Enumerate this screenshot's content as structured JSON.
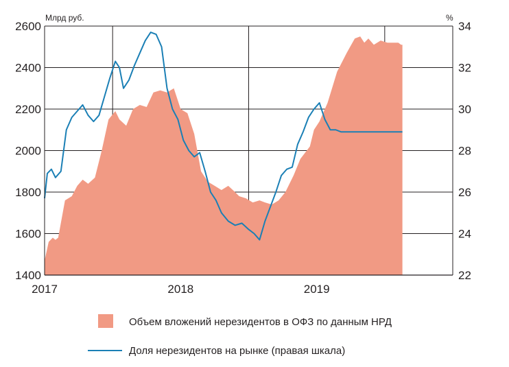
{
  "chart_data": {
    "type": "area",
    "left_axis": {
      "label": "Млрд руб.",
      "ticks": [
        1400,
        1600,
        1800,
        2000,
        2200,
        2400,
        2600
      ],
      "tick_labels": [
        "1400",
        "1600",
        "1800",
        "2000",
        "2200",
        "2400",
        "2600"
      ],
      "ylim": [
        1400,
        2600
      ]
    },
    "right_axis": {
      "label": "%",
      "ticks": [
        22,
        24,
        26,
        28,
        30,
        32,
        34
      ],
      "tick_labels": [
        "22",
        "24",
        "26",
        "28",
        "30",
        "32",
        "34"
      ],
      "ylim": [
        22,
        34
      ]
    },
    "x_axis": {
      "tick_labels": [
        "2017",
        "2018",
        "2019"
      ],
      "tick_positions": [
        2017.0,
        2018.0,
        2019.0
      ],
      "xlim": [
        2016.5,
        2019.5
      ]
    },
    "grid": true,
    "legend_position": "bottom",
    "series": [
      {
        "name": "Объем вложений нерезидентов в ОФЗ по данным НРД",
        "type": "area",
        "axis": "left",
        "color": "#f19a84",
        "x": [
          2016.5,
          2016.53,
          2016.56,
          2016.58,
          2016.6,
          2016.65,
          2016.7,
          2016.74,
          2016.78,
          2016.82,
          2016.87,
          2016.92,
          2016.97,
          2017.02,
          2017.05,
          2017.1,
          2017.15,
          2017.2,
          2017.25,
          2017.3,
          2017.35,
          2017.4,
          2017.45,
          2017.5,
          2017.55,
          2017.6,
          2017.65,
          2017.7,
          2017.75,
          2017.8,
          2017.85,
          2017.9,
          2017.93,
          2017.98,
          2018.03,
          2018.08,
          2018.12,
          2018.17,
          2018.22,
          2018.27,
          2018.33,
          2018.38,
          2018.45,
          2018.48,
          2018.52,
          2018.58,
          2018.65,
          2018.72,
          2018.78,
          2018.82,
          2018.85,
          2018.88,
          2018.92,
          2018.97,
          2019.02,
          2019.05,
          2019.08,
          2019.1,
          2019.12,
          2019.13
        ],
        "values": [
          1470,
          1560,
          1580,
          1570,
          1580,
          1760,
          1780,
          1830,
          1860,
          1840,
          1870,
          2000,
          2150,
          2190,
          2150,
          2120,
          2200,
          2220,
          2210,
          2280,
          2290,
          2280,
          2300,
          2200,
          2180,
          2080,
          1900,
          1850,
          1830,
          1810,
          1830,
          1800,
          1780,
          1770,
          1750,
          1760,
          1750,
          1740,
          1760,
          1800,
          1880,
          1960,
          2020,
          2100,
          2140,
          2230,
          2380,
          2470,
          2540,
          2550,
          2520,
          2540,
          2510,
          2530,
          2520,
          2520,
          2520,
          2520,
          2510,
          2510
        ]
      },
      {
        "name": "Доля нерезидентов на рынке (правая шкала)",
        "type": "line",
        "axis": "right",
        "color": "#1a7fb5",
        "x": [
          2016.5,
          2016.52,
          2016.55,
          2016.58,
          2016.62,
          2016.66,
          2016.7,
          2016.74,
          2016.78,
          2016.82,
          2016.86,
          2016.9,
          2016.94,
          2016.98,
          2017.02,
          2017.05,
          2017.08,
          2017.12,
          2017.16,
          2017.2,
          2017.24,
          2017.28,
          2017.32,
          2017.36,
          2017.4,
          2017.44,
          2017.48,
          2017.52,
          2017.56,
          2017.6,
          2017.64,
          2017.68,
          2017.72,
          2017.76,
          2017.8,
          2017.85,
          2017.9,
          2017.95,
          2018.0,
          2018.04,
          2018.08,
          2018.12,
          2018.16,
          2018.2,
          2018.24,
          2018.28,
          2018.32,
          2018.36,
          2018.4,
          2018.44,
          2018.48,
          2018.52,
          2018.56,
          2018.6,
          2018.64,
          2018.68,
          2018.72,
          2018.76,
          2018.8,
          2018.84,
          2018.88,
          2018.92,
          2018.96,
          2019.0,
          2019.04,
          2019.08,
          2019.12,
          2019.13
        ],
        "values": [
          25.7,
          26.9,
          27.1,
          26.7,
          27.0,
          29.0,
          29.6,
          29.9,
          30.2,
          29.7,
          29.4,
          29.7,
          30.6,
          31.5,
          32.3,
          32.0,
          31.0,
          31.4,
          32.1,
          32.7,
          33.3,
          33.7,
          33.6,
          33.0,
          31.0,
          30.0,
          29.5,
          28.5,
          28.0,
          27.7,
          27.9,
          27.0,
          26.0,
          25.6,
          25.0,
          24.6,
          24.4,
          24.5,
          24.2,
          24.0,
          23.7,
          24.6,
          25.3,
          26.0,
          26.8,
          27.1,
          27.2,
          28.3,
          28.9,
          29.6,
          30.0,
          30.3,
          29.5,
          29.0,
          29.0,
          28.9,
          28.9,
          28.9,
          28.9,
          28.9,
          28.9,
          28.9,
          28.9,
          28.9,
          28.9,
          28.9,
          28.9,
          28.9
        ]
      }
    ]
  }
}
